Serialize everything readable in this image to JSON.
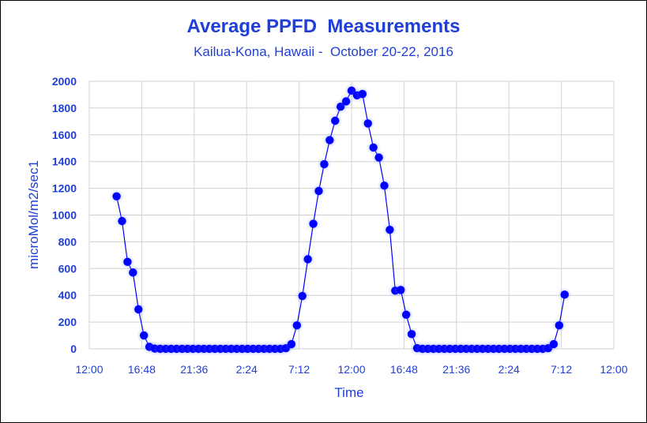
{
  "chart_data": {
    "type": "line",
    "title": "Average PPFD  Measurements",
    "subtitle": "Kailua-Kona, Hawaii -  October 20-22, 2016",
    "xlabel": "Time",
    "ylabel": "microMol/m2/sec1",
    "ylim": [
      0,
      2000
    ],
    "yticks": [
      0,
      200,
      400,
      600,
      800,
      1000,
      1200,
      1400,
      1600,
      1800,
      2000
    ],
    "xlim_hours": [
      12,
      60
    ],
    "xticks": [
      {
        "h": 12,
        "label": "12:00"
      },
      {
        "h": 16.8,
        "label": "16:48"
      },
      {
        "h": 21.6,
        "label": "21:36"
      },
      {
        "h": 26.4,
        "label": "2:24"
      },
      {
        "h": 31.2,
        "label": "7:12"
      },
      {
        "h": 36,
        "label": "12:00"
      },
      {
        "h": 40.8,
        "label": "16:48"
      },
      {
        "h": 45.6,
        "label": "21:36"
      },
      {
        "h": 50.4,
        "label": "2:24"
      },
      {
        "h": 55.2,
        "label": "7:12"
      },
      {
        "h": 60,
        "label": "12:00"
      }
    ],
    "grid": true,
    "legend": "none",
    "series": [
      {
        "color": "#0000ff",
        "points": [
          [
            14.5,
            1140
          ],
          [
            15,
            955
          ],
          [
            15.5,
            650
          ],
          [
            16,
            570
          ],
          [
            16.5,
            295
          ],
          [
            17,
            100
          ],
          [
            17.5,
            15
          ],
          [
            18,
            2
          ],
          [
            18.5,
            0
          ],
          [
            19,
            0
          ],
          [
            19.5,
            0
          ],
          [
            20,
            0
          ],
          [
            20.5,
            0
          ],
          [
            21,
            0
          ],
          [
            21.5,
            0
          ],
          [
            22,
            0
          ],
          [
            22.5,
            0
          ],
          [
            23,
            0
          ],
          [
            23.5,
            0
          ],
          [
            24,
            0
          ],
          [
            24.5,
            0
          ],
          [
            25,
            0
          ],
          [
            25.5,
            0
          ],
          [
            26,
            0
          ],
          [
            26.5,
            0
          ],
          [
            27,
            0
          ],
          [
            27.5,
            0
          ],
          [
            28,
            0
          ],
          [
            28.5,
            0
          ],
          [
            29,
            0
          ],
          [
            29.5,
            0
          ],
          [
            30,
            5
          ],
          [
            30.5,
            35
          ],
          [
            31,
            175
          ],
          [
            31.5,
            395
          ],
          [
            32,
            670
          ],
          [
            32.5,
            935
          ],
          [
            33,
            1180
          ],
          [
            33.5,
            1380
          ],
          [
            34,
            1560
          ],
          [
            34.5,
            1705
          ],
          [
            35,
            1810
          ],
          [
            35.5,
            1850
          ],
          [
            36,
            1930
          ],
          [
            36.5,
            1895
          ],
          [
            37,
            1905
          ],
          [
            37.5,
            1685
          ],
          [
            38,
            1505
          ],
          [
            38.5,
            1430
          ],
          [
            39,
            1220
          ],
          [
            39.5,
            890
          ],
          [
            40,
            435
          ],
          [
            40.5,
            440
          ],
          [
            41,
            255
          ],
          [
            41.5,
            110
          ],
          [
            42,
            5
          ],
          [
            42.5,
            0
          ],
          [
            43,
            0
          ],
          [
            43.5,
            0
          ],
          [
            44,
            0
          ],
          [
            44.5,
            0
          ],
          [
            45,
            0
          ],
          [
            45.5,
            0
          ],
          [
            46,
            0
          ],
          [
            46.5,
            0
          ],
          [
            47,
            0
          ],
          [
            47.5,
            0
          ],
          [
            48,
            0
          ],
          [
            48.5,
            0
          ],
          [
            49,
            0
          ],
          [
            49.5,
            0
          ],
          [
            50,
            0
          ],
          [
            50.5,
            0
          ],
          [
            51,
            0
          ],
          [
            51.5,
            0
          ],
          [
            52,
            0
          ],
          [
            52.5,
            0
          ],
          [
            53,
            0
          ],
          [
            53.5,
            0
          ],
          [
            54,
            5
          ],
          [
            54.5,
            35
          ],
          [
            55,
            175
          ],
          [
            55.5,
            405
          ]
        ]
      }
    ]
  }
}
